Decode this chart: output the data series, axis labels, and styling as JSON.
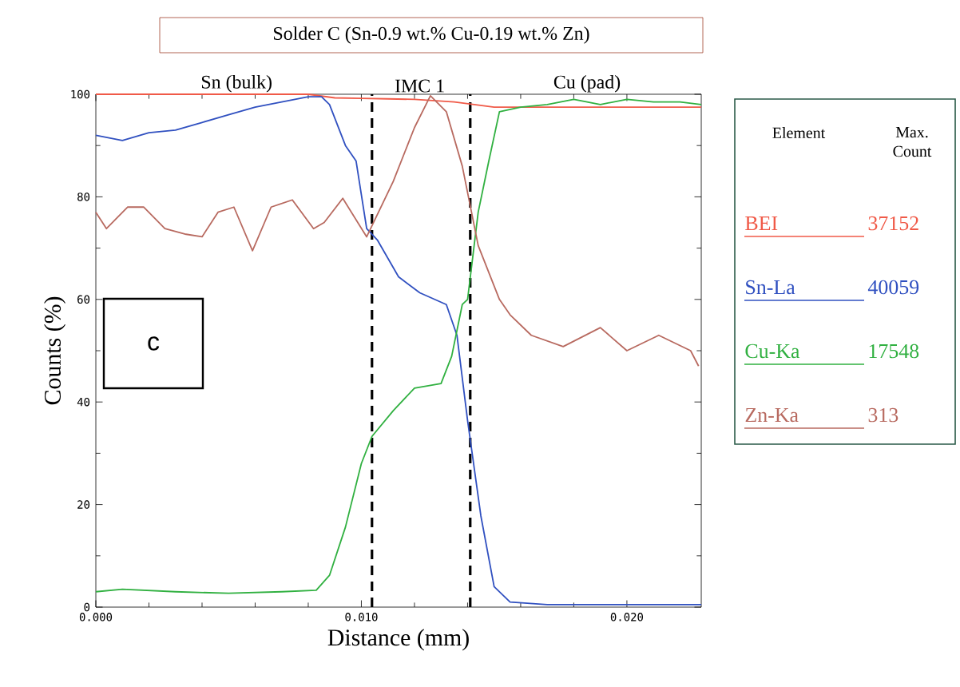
{
  "chart_data": {
    "type": "line",
    "title": "Solder C (Sn-0.9 wt.% Cu-0.19 wt.% Zn)",
    "xlabel": "Distance (mm)",
    "ylabel": "Counts (%)",
    "legend_title": "Element",
    "xlim": [
      0,
      0.0228
    ],
    "ylim": [
      0,
      100
    ],
    "xticks": [
      {
        "value": 0,
        "label": "0.000"
      },
      {
        "value": 0.01,
        "label": "0.010"
      },
      {
        "value": 0.02,
        "label": "0.020"
      }
    ],
    "yticks": [
      0,
      20,
      40,
      60,
      80,
      100
    ],
    "grid": false,
    "legend": "right",
    "marker": "none",
    "line_style": "solid",
    "series": [
      {
        "name": "BEI",
        "color": "#f05a48",
        "x": [
          0,
          0.002,
          0.004,
          0.006,
          0.008,
          0.009,
          0.01,
          0.011,
          0.012,
          0.0135,
          0.015,
          0.017,
          0.019,
          0.021,
          0.0228
        ],
        "values": [
          100,
          100,
          100,
          100,
          100,
          99.3,
          99.2,
          99.1,
          99,
          98.5,
          97.5,
          97.5,
          97.5,
          97.5,
          97.5
        ]
      },
      {
        "name": "Sn-La",
        "color": "#3050c0",
        "x": [
          0,
          0.001,
          0.002,
          0.003,
          0.004,
          0.005,
          0.006,
          0.007,
          0.008,
          0.0085,
          0.0088,
          0.0094,
          0.0098,
          0.0102,
          0.0106,
          0.0114,
          0.0122,
          0.0132,
          0.0134,
          0.0136,
          0.014,
          0.0145,
          0.015,
          0.0156,
          0.017,
          0.019,
          0.021,
          0.0228
        ],
        "values": [
          92,
          91,
          92.5,
          93,
          94.5,
          96,
          97.5,
          98.5,
          99.5,
          99.5,
          98,
          90,
          87,
          73.8,
          71.6,
          64.4,
          61.3,
          59,
          56,
          53,
          36.4,
          17.8,
          4,
          1,
          0.5,
          0.5,
          0.5,
          0.5
        ]
      },
      {
        "name": "Cu-Ka",
        "color": "#30b040",
        "x": [
          0,
          0.001,
          0.003,
          0.005,
          0.007,
          0.0083,
          0.0088,
          0.0094,
          0.01,
          0.0104,
          0.0112,
          0.012,
          0.013,
          0.0134,
          0.0138,
          0.014,
          0.0144,
          0.0148,
          0.0152,
          0.016,
          0.017,
          0.018,
          0.019,
          0.02,
          0.021,
          0.022,
          0.0228
        ],
        "values": [
          3,
          3.5,
          3,
          2.7,
          3,
          3.3,
          6.2,
          15.6,
          28,
          33.3,
          38.3,
          42.7,
          43.6,
          48.9,
          59,
          60,
          77,
          87,
          96.6,
          97.5,
          98,
          99,
          98,
          99,
          98.5,
          98.5,
          98
        ]
      },
      {
        "name": "Zn-Ka",
        "color": "#b86a60",
        "x": [
          0,
          0.0004,
          0.0012,
          0.0018,
          0.0026,
          0.0034,
          0.004,
          0.0046,
          0.0052,
          0.0059,
          0.0066,
          0.0074,
          0.0082,
          0.0086,
          0.0093,
          0.0102,
          0.0112,
          0.012,
          0.0126,
          0.0132,
          0.0138,
          0.0144,
          0.0152,
          0.0156,
          0.0164,
          0.0176,
          0.019,
          0.02,
          0.0212,
          0.0224,
          0.0227
        ],
        "values": [
          77,
          73.8,
          78,
          78,
          73.8,
          72.7,
          72.2,
          77,
          78,
          69.5,
          78,
          79.4,
          73.8,
          75,
          79.7,
          72.2,
          83,
          93.5,
          99.7,
          96.6,
          86,
          70.5,
          60,
          57,
          53,
          50.8,
          54.5,
          50,
          53,
          50,
          47
        ]
      }
    ],
    "ref_lines": [
      {
        "axis": "x",
        "value": 0.0104,
        "color": "#000000",
        "line_style": "dashed"
      },
      {
        "axis": "x",
        "value": 0.0141,
        "color": "#000000",
        "line_style": "dashed"
      }
    ],
    "annotations": [
      {
        "text": "Sn (bulk)",
        "x": 0.0053,
        "y": 100
      },
      {
        "text": "IMC 1",
        "x": 0.0122,
        "y": 100
      },
      {
        "text": "Cu (pad)",
        "x": 0.0185,
        "y": 100
      },
      "c",
      "Max. Count",
      "37152",
      "40059",
      "17548",
      "313"
    ]
  }
}
